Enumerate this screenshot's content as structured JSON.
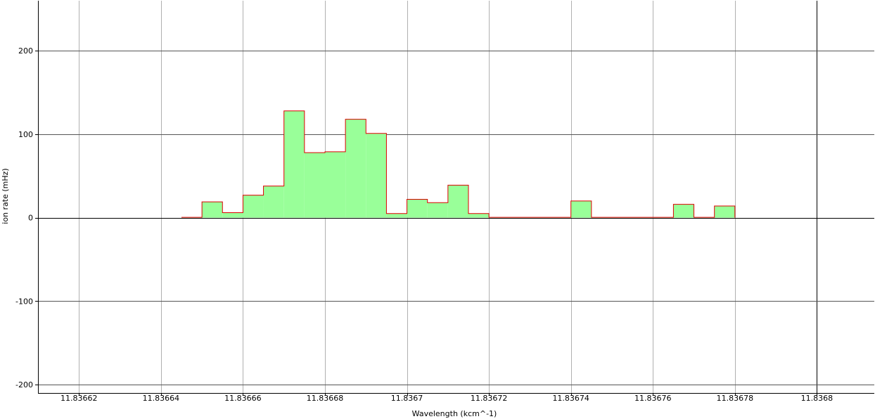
{
  "chart_data": {
    "type": "histogram",
    "xlabel": "Wavelength (kcm^-1)",
    "ylabel": "ion rate (mHz)",
    "xlim": [
      11.83661,
      11.836814
    ],
    "ylim": [
      -210,
      260
    ],
    "x_ticks": [
      11.83662,
      11.83664,
      11.83666,
      11.83668,
      11.8367,
      11.83672,
      11.83674,
      11.83676,
      11.83678,
      11.8368
    ],
    "x_tick_labels": [
      "11.83662",
      "11.83664",
      "11.83666",
      "11.83668",
      "11.8367",
      "11.83672",
      "11.83674",
      "11.83676",
      "11.83678",
      "11.8368"
    ],
    "y_ticks": [
      -200,
      -100,
      0,
      100,
      200
    ],
    "y_tick_labels": [
      "-200",
      "-100",
      "0",
      "100",
      "200"
    ],
    "bin_width": 5e-06,
    "bins": [
      {
        "x0": 11.836645,
        "value": 0.5
      },
      {
        "x0": 11.83665,
        "value": 19
      },
      {
        "x0": 11.836655,
        "value": 6
      },
      {
        "x0": 11.83666,
        "value": 27
      },
      {
        "x0": 11.836665,
        "value": 38
      },
      {
        "x0": 11.83667,
        "value": 128
      },
      {
        "x0": 11.836675,
        "value": 78
      },
      {
        "x0": 11.83668,
        "value": 79
      },
      {
        "x0": 11.836685,
        "value": 118
      },
      {
        "x0": 11.83669,
        "value": 101
      },
      {
        "x0": 11.836695,
        "value": 5
      },
      {
        "x0": 11.8367,
        "value": 22
      },
      {
        "x0": 11.836705,
        "value": 18
      },
      {
        "x0": 11.83671,
        "value": 39
      },
      {
        "x0": 11.836715,
        "value": 5
      },
      {
        "x0": 11.83672,
        "value": 0.5
      },
      {
        "x0": 11.836725,
        "value": 0.5
      },
      {
        "x0": 11.83673,
        "value": 0.5
      },
      {
        "x0": 11.836735,
        "value": 0.5
      },
      {
        "x0": 11.83674,
        "value": 20
      },
      {
        "x0": 11.836745,
        "value": 0.5
      },
      {
        "x0": 11.83675,
        "value": 0.5
      },
      {
        "x0": 11.836755,
        "value": 0.5
      },
      {
        "x0": 11.83676,
        "value": 0.5
      },
      {
        "x0": 11.836765,
        "value": 16
      },
      {
        "x0": 11.83677,
        "value": 0.5
      },
      {
        "x0": 11.836775,
        "value": 14
      }
    ],
    "grid": true,
    "colors": {
      "fill": "#99ff99",
      "outline": "#dd0000",
      "grid": "#b0b0b0",
      "axis": "#000000"
    }
  }
}
